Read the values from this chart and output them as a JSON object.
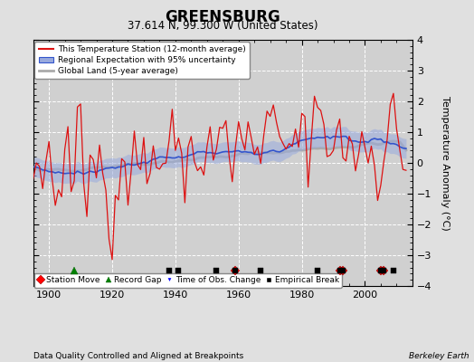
{
  "title": "GREENSBURG",
  "subtitle": "37.614 N, 99.300 W (United States)",
  "ylabel": "Temperature Anomaly (°C)",
  "xlabel_note": "Data Quality Controlled and Aligned at Breakpoints",
  "credit": "Berkeley Earth",
  "xlim": [
    1895,
    2015
  ],
  "ylim": [
    -4,
    4
  ],
  "yticks": [
    -4,
    -3,
    -2,
    -1,
    0,
    1,
    2,
    3,
    4
  ],
  "xticks": [
    1900,
    1920,
    1940,
    1960,
    1980,
    2000
  ],
  "bg_color": "#e0e0e0",
  "plot_bg_color": "#d0d0d0",
  "grid_color": "#ffffff",
  "red_line_color": "#dd1111",
  "blue_line_color": "#3355cc",
  "blue_fill_color": "#99aadd",
  "gray_line_color": "#aaaaaa",
  "station_move_years": [
    1959,
    1992,
    1993,
    2005,
    2006
  ],
  "record_gap_years": [
    1908
  ],
  "time_obs_change_years": [],
  "empirical_break_years": [
    1938,
    1941,
    1953,
    1959,
    1967,
    1985,
    1992,
    1993,
    2005,
    2006,
    2009
  ],
  "seed": 42,
  "year_start": 1895,
  "year_end": 2013
}
